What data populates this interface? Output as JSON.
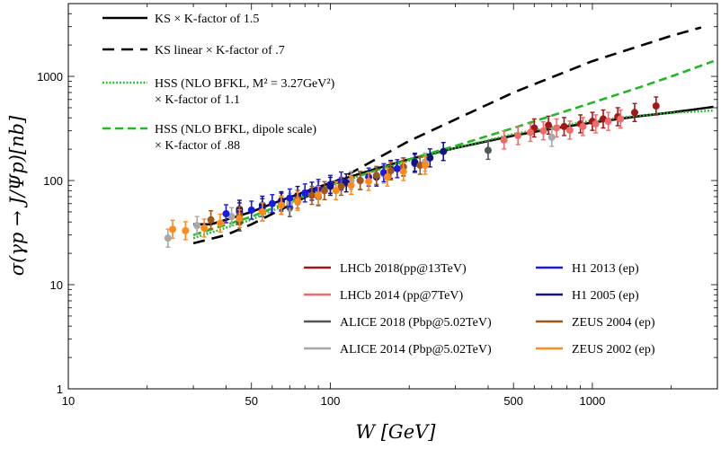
{
  "chart_data": {
    "type": "scatter",
    "title": "",
    "xlabel": "W [GeV]",
    "ylabel": "σ(γp → J/Ψp)[nb]",
    "x_scale": "log",
    "y_scale": "log",
    "xlim": [
      10,
      3000
    ],
    "ylim": [
      1,
      5000
    ],
    "grid": false,
    "x_ticks": [
      {
        "value": 10,
        "label": "10"
      },
      {
        "value": 50,
        "label": "50"
      },
      {
        "value": 100,
        "label": "100"
      },
      {
        "value": 500,
        "label": "500"
      },
      {
        "value": 1000,
        "label": "1000"
      }
    ],
    "y_ticks": [
      {
        "value": 1,
        "label": "1"
      },
      {
        "value": 10,
        "label": "10"
      },
      {
        "value": 100,
        "label": "100"
      },
      {
        "value": 1000,
        "label": "1000"
      }
    ],
    "legend_curves_placement": "top-left",
    "legend_data_placement": "bottom-right",
    "curves": [
      {
        "name": "KS × K-factor of 1.5",
        "legend": [
          "KS × K-factor of 1.5"
        ],
        "style": "solid",
        "color": "#000000",
        "x": [
          30,
          35,
          40,
          50,
          60,
          80,
          100,
          150,
          200,
          300,
          500,
          700,
          1000,
          1500,
          2000,
          2900
        ],
        "y": [
          38,
          38,
          42,
          50,
          60,
          78,
          95,
          130,
          160,
          205,
          270,
          315,
          360,
          415,
          450,
          510
        ]
      },
      {
        "name": "KS linear × K-factor of .7",
        "legend": [
          "KS linear × K-factor of .7"
        ],
        "style": "dashed",
        "color": "#000000",
        "x": [
          30,
          40,
          50,
          70,
          100,
          200,
          500,
          1000,
          2000,
          2600
        ],
        "y": [
          25,
          30,
          38,
          58,
          92,
          240,
          700,
          1400,
          2450,
          2950
        ]
      },
      {
        "name": "HSS (NLO BFKL, M^2 = 3.27GeV^2) × K-factor of 1.1",
        "legend": [
          "HSS (NLO BFKL, M² = 3.27GeV²)",
          "× K-factor of 1.1"
        ],
        "style": "dotted",
        "color": "#22b822",
        "x": [
          30,
          50,
          100,
          150,
          200,
          300,
          500,
          700,
          1000,
          1500,
          2000,
          2900
        ],
        "y": [
          28,
          42,
          90,
          125,
          155,
          205,
          280,
          325,
          375,
          420,
          445,
          470
        ]
      },
      {
        "name": "HSS (NLO BFKL, dipole scale) × K-factor of .88",
        "legend": [
          "HSS (NLO BFKL, dipole scale)",
          "× K-factor of .88"
        ],
        "style": "dashed",
        "color": "#22b822",
        "x": [
          30,
          50,
          100,
          200,
          300,
          500,
          700,
          1000,
          1500,
          2000,
          2900
        ],
        "y": [
          30,
          45,
          90,
          160,
          215,
          320,
          420,
          560,
          780,
          1000,
          1400
        ]
      }
    ],
    "series": [
      {
        "name": "LHCb 2018(pp@13TeV)",
        "color": "#a01818",
        "x": [
          600,
          680,
          780,
          900,
          1000,
          1100,
          1250,
          1450,
          1750
        ],
        "y": [
          320,
          340,
          330,
          350,
          370,
          390,
          410,
          450,
          520
        ]
      },
      {
        "name": "LHCb 2014 (pp@7TeV)",
        "color": "#f06a6a",
        "x": [
          460,
          520,
          580,
          650,
          730,
          820,
          920,
          1030,
          1150,
          1280
        ],
        "y": [
          245,
          270,
          290,
          300,
          320,
          305,
          330,
          350,
          370,
          390
        ]
      },
      {
        "name": "ALICE 2018 (Pbp@5.02TeV)",
        "color": "#555555",
        "x": [
          45,
          70,
          90,
          400
        ],
        "y": [
          40,
          55,
          70,
          195
        ]
      },
      {
        "name": "ALICE 2014 (Pbp@5.02TeV)",
        "color": "#a8a8a8",
        "x": [
          24,
          31,
          42,
          55,
          70,
          90,
          120,
          160,
          230,
          700
        ],
        "y": [
          28,
          37,
          45,
          55,
          62,
          80,
          100,
          115,
          150,
          260
        ]
      },
      {
        "name": "H1 2013 (ep)",
        "color": "#1a1ae6",
        "x": [
          40,
          45,
          50,
          55,
          60,
          65,
          70,
          80,
          90,
          100,
          110,
          140,
          160,
          180,
          210
        ],
        "y": [
          48,
          50,
          52,
          55,
          60,
          62,
          68,
          76,
          84,
          92,
          99,
          108,
          119,
          130,
          146
        ]
      },
      {
        "name": "H1 2005 (ep)",
        "color": "#12128a",
        "x": [
          45,
          55,
          65,
          75,
          85,
          100,
          115,
          130,
          150,
          170,
          190,
          210,
          240,
          270
        ],
        "y": [
          53,
          58,
          64,
          72,
          79,
          88,
          95,
          100,
          108,
          128,
          135,
          150,
          165,
          190
        ]
      },
      {
        "name": "ZEUS 2004 (ep)",
        "color": "#a0581a",
        "x": [
          35,
          45,
          55,
          65,
          75,
          85,
          95,
          110,
          130,
          150,
          170,
          190,
          220
        ],
        "y": [
          42,
          46,
          50,
          58,
          66,
          72,
          80,
          88,
          100,
          112,
          124,
          135,
          140
        ]
      },
      {
        "name": "ZEUS 2002 (ep)",
        "color": "#ff8a1a",
        "x": [
          25,
          28,
          33,
          38,
          45,
          55,
          65,
          75,
          90,
          105,
          120,
          140,
          165,
          190,
          230
        ],
        "y": [
          34,
          33,
          35,
          39,
          43,
          50,
          58,
          63,
          72,
          80,
          90,
          98,
          108,
          122,
          140
        ]
      }
    ]
  }
}
